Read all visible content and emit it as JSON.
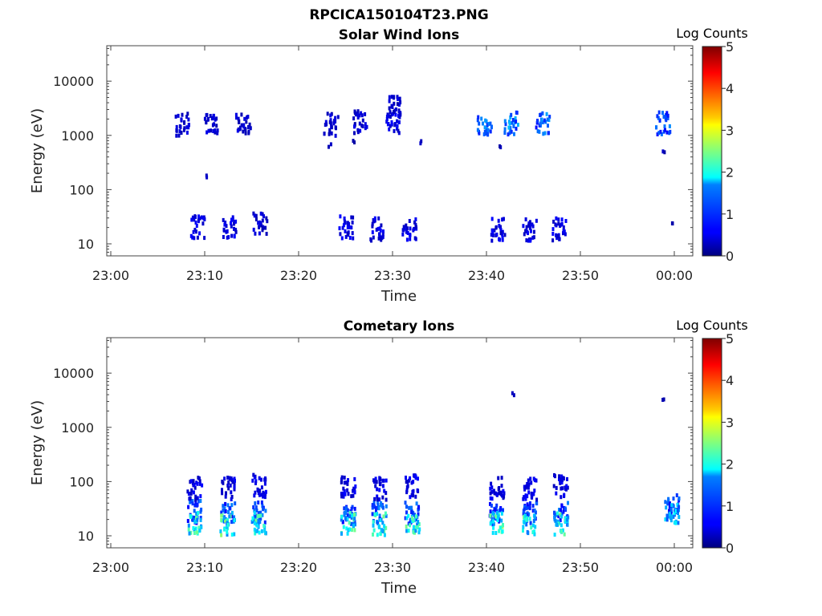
{
  "figure": {
    "title": "RPCICA150104T23.PNG"
  },
  "colorbar": {
    "label": "Log Counts",
    "ticks": [
      "0",
      "1",
      "2",
      "3",
      "4",
      "5"
    ],
    "range": [
      0,
      5
    ],
    "colormap": "jet"
  },
  "chart_data": [
    {
      "type": "heatmap",
      "title": "Solar Wind Ions",
      "xlabel": "Time",
      "ylabel": "Energy (eV)",
      "x_ticks": [
        "23:00",
        "23:10",
        "23:20",
        "23:30",
        "23:40",
        "23:50",
        "00:00"
      ],
      "y_ticks": [
        "10",
        "100",
        "1000",
        "10000"
      ],
      "y_scale": "log",
      "xlim": [
        "23:00",
        "00:00"
      ],
      "ylim": [
        6,
        45000
      ],
      "value_label": "Log Counts",
      "patches": [
        {
          "t": "23:07:30",
          "e": 1700,
          "v": 0.4
        },
        {
          "t": "23:10:30",
          "e": 1900,
          "v": 0.4
        },
        {
          "t": "23:14:00",
          "e": 1700,
          "v": 0.4
        },
        {
          "t": "23:10:10",
          "e": 180,
          "v": 0.3
        },
        {
          "t": "23:23:20",
          "e": 1700,
          "v": 0.4
        },
        {
          "t": "23:23:10",
          "e": 700,
          "v": 0.3
        },
        {
          "t": "23:26:30",
          "e": 1900,
          "v": 0.4
        },
        {
          "t": "23:25:50",
          "e": 800,
          "v": 0.3
        },
        {
          "t": "23:30:00",
          "e": 1800,
          "v": 0.5
        },
        {
          "t": "23:30:00",
          "e": 3800,
          "v": 0.4
        },
        {
          "t": "23:32:50",
          "e": 850,
          "v": 0.3
        },
        {
          "t": "23:39:40",
          "e": 1800,
          "v": 1.1
        },
        {
          "t": "23:42:30",
          "e": 1800,
          "v": 1.2
        },
        {
          "t": "23:45:50",
          "e": 1800,
          "v": 1.1
        },
        {
          "t": "23:41:20",
          "e": 700,
          "v": 0.3
        },
        {
          "t": "23:58:40",
          "e": 1800,
          "v": 1.0
        },
        {
          "t": "23:58:40",
          "e": 500,
          "v": 0.3
        },
        {
          "t": "23:09:10",
          "e": 22,
          "v": 0.5
        },
        {
          "t": "23:12:30",
          "e": 22,
          "v": 0.5
        },
        {
          "t": "23:15:50",
          "e": 25,
          "v": 0.4
        },
        {
          "t": "23:25:00",
          "e": 22,
          "v": 0.5
        },
        {
          "t": "23:28:10",
          "e": 20,
          "v": 0.5
        },
        {
          "t": "23:31:40",
          "e": 20,
          "v": 0.5
        },
        {
          "t": "23:41:10",
          "e": 20,
          "v": 0.5
        },
        {
          "t": "23:44:30",
          "e": 20,
          "v": 0.5
        },
        {
          "t": "23:47:40",
          "e": 20,
          "v": 0.5
        },
        {
          "t": "23:59:40",
          "e": 27,
          "v": 0.3
        }
      ]
    },
    {
      "type": "heatmap",
      "title": "Cometary Ions",
      "xlabel": "Time",
      "ylabel": "Energy (eV)",
      "x_ticks": [
        "23:00",
        "23:10",
        "23:20",
        "23:30",
        "23:40",
        "23:50",
        "00:00"
      ],
      "y_ticks": [
        "10",
        "100",
        "1000",
        "10000"
      ],
      "y_scale": "log",
      "xlim": [
        "23:00",
        "00:00"
      ],
      "ylim": [
        6,
        45000
      ],
      "value_label": "Log Counts",
      "patches": [
        {
          "t": "23:08:50",
          "e": 30,
          "v": 1.0
        },
        {
          "t": "23:08:50",
          "e": 18,
          "v": 1.9
        },
        {
          "t": "23:08:50",
          "e": 80,
          "v": 0.5
        },
        {
          "t": "23:12:20",
          "e": 28,
          "v": 1.0
        },
        {
          "t": "23:12:20",
          "e": 18,
          "v": 2.0
        },
        {
          "t": "23:12:20",
          "e": 80,
          "v": 0.5
        },
        {
          "t": "23:15:40",
          "e": 28,
          "v": 1.0
        },
        {
          "t": "23:15:40",
          "e": 18,
          "v": 1.9
        },
        {
          "t": "23:15:40",
          "e": 90,
          "v": 0.5
        },
        {
          "t": "23:25:10",
          "e": 28,
          "v": 1.0
        },
        {
          "t": "23:25:10",
          "e": 18,
          "v": 1.9
        },
        {
          "t": "23:25:10",
          "e": 90,
          "v": 0.5
        },
        {
          "t": "23:28:30",
          "e": 28,
          "v": 1.0
        },
        {
          "t": "23:28:30",
          "e": 18,
          "v": 1.9
        },
        {
          "t": "23:28:30",
          "e": 80,
          "v": 0.5
        },
        {
          "t": "23:32:00",
          "e": 28,
          "v": 1.0
        },
        {
          "t": "23:32:00",
          "e": 18,
          "v": 2.0
        },
        {
          "t": "23:32:00",
          "e": 90,
          "v": 0.5
        },
        {
          "t": "23:41:00",
          "e": 28,
          "v": 1.0
        },
        {
          "t": "23:41:00",
          "e": 18,
          "v": 2.0
        },
        {
          "t": "23:41:00",
          "e": 80,
          "v": 0.5
        },
        {
          "t": "23:44:30",
          "e": 28,
          "v": 1.0
        },
        {
          "t": "23:44:30",
          "e": 18,
          "v": 1.9
        },
        {
          "t": "23:44:30",
          "e": 80,
          "v": 0.5
        },
        {
          "t": "23:47:50",
          "e": 28,
          "v": 1.0
        },
        {
          "t": "23:47:50",
          "e": 18,
          "v": 1.9
        },
        {
          "t": "23:47:50",
          "e": 90,
          "v": 0.5
        },
        {
          "t": "23:59:40",
          "e": 40,
          "v": 1.0
        },
        {
          "t": "23:59:40",
          "e": 28,
          "v": 1.6
        },
        {
          "t": "23:42:40",
          "e": 4200,
          "v": 0.3
        },
        {
          "t": "23:58:40",
          "e": 3600,
          "v": 0.3
        }
      ]
    }
  ]
}
